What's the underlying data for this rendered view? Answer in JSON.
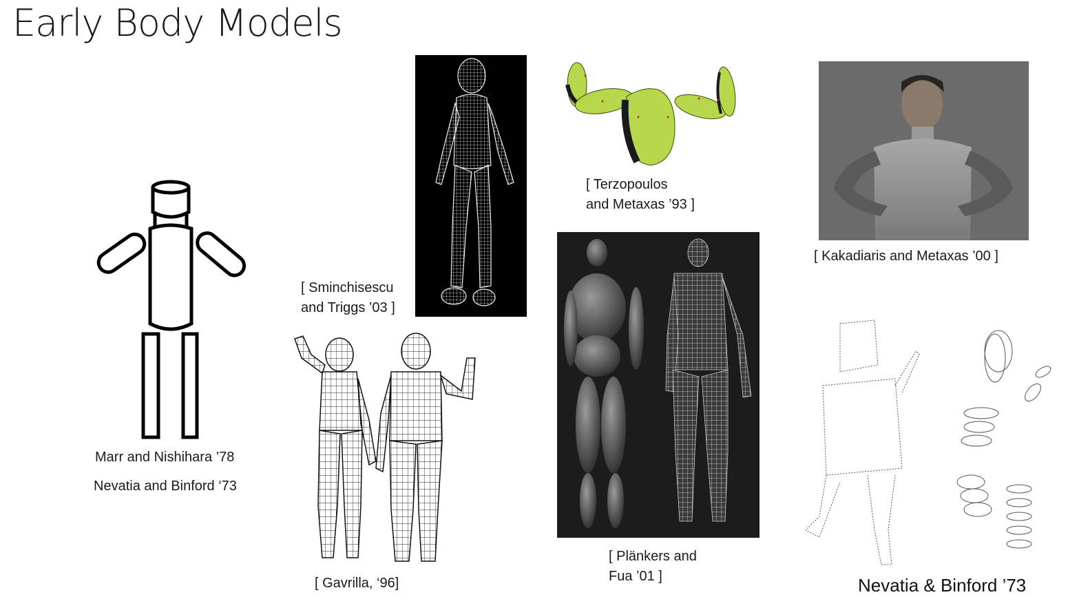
{
  "slide": {
    "title": "Early Body Models"
  },
  "captions": {
    "marr": "Marr and Nishihara ’78",
    "nevatia_left": "Nevatia and Binford ‘73",
    "sminchisescu_1": "[ Sminchisescu",
    "sminchisescu_2": "and Triggs ’03 ]",
    "gavrilla": "[ Gavrilla, ‘96]",
    "terzopoulos_1": "[ Terzopoulos",
    "terzopoulos_2": "and Metaxas ’93 ]",
    "plankers_1": "[ Plänkers and",
    "plankers_2": "Fua ’01 ]",
    "kakadiaris": "[ Kakadiaris and Metaxas ’00 ]",
    "nevatia_right": "Nevatia & Binford ’73"
  },
  "colors": {
    "terzopoulos_green": "#b6d84a",
    "kakadiaris_bg": "#6b6b6b",
    "plankers_bg": "#1c1c1c"
  }
}
